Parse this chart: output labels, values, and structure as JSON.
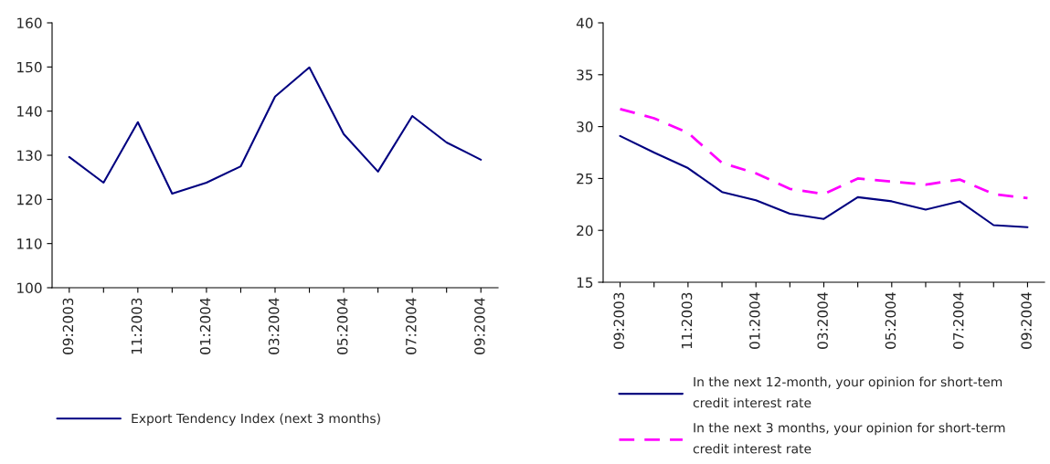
{
  "chart_data": [
    {
      "type": "line",
      "categories": [
        "09:2003",
        null,
        "11:2003",
        null,
        "01:2004",
        null,
        "03:2004",
        null,
        "05:2004",
        null,
        "07:2004",
        null,
        "09:2004"
      ],
      "series": [
        {
          "name": "Export Tendency Index (next 3 months)",
          "color": "#000080",
          "line_style": "solid",
          "values": [
            129.6,
            123.8,
            137.5,
            121.3,
            123.8,
            127.5,
            143.3,
            149.9,
            134.8,
            126.3,
            138.9,
            132.9,
            129.0
          ]
        }
      ],
      "ylim": [
        100,
        160
      ],
      "yticks": [
        100,
        110,
        120,
        130,
        140,
        150,
        160
      ],
      "grid": false,
      "legend": "bottom",
      "marker": "none"
    },
    {
      "type": "line",
      "categories": [
        "09:2003",
        null,
        "11:2003",
        null,
        "01:2004",
        null,
        "03:2004",
        null,
        "05:2004",
        null,
        "07:2004",
        null,
        "09:2004"
      ],
      "series": [
        {
          "name": "In the next 12-month, your opinion for short-tem credit interest rate",
          "color": "#000080",
          "line_style": "solid",
          "values": [
            29.1,
            27.5,
            26.0,
            23.7,
            22.9,
            21.6,
            21.1,
            23.2,
            22.8,
            22.0,
            22.8,
            20.5,
            20.3
          ]
        },
        {
          "name": "In the next 3 months, your opinion for short-term credit interest rate",
          "color": "#ff00ff",
          "line_style": "dashed",
          "values": [
            31.7,
            30.8,
            29.4,
            26.5,
            25.5,
            24.0,
            23.5,
            25.0,
            24.7,
            24.4,
            24.9,
            23.5,
            23.1
          ]
        }
      ],
      "ylim": [
        15,
        40
      ],
      "yticks": [
        15,
        20,
        25,
        30,
        35,
        40
      ],
      "grid": false,
      "legend": "bottom",
      "marker": "none"
    }
  ]
}
